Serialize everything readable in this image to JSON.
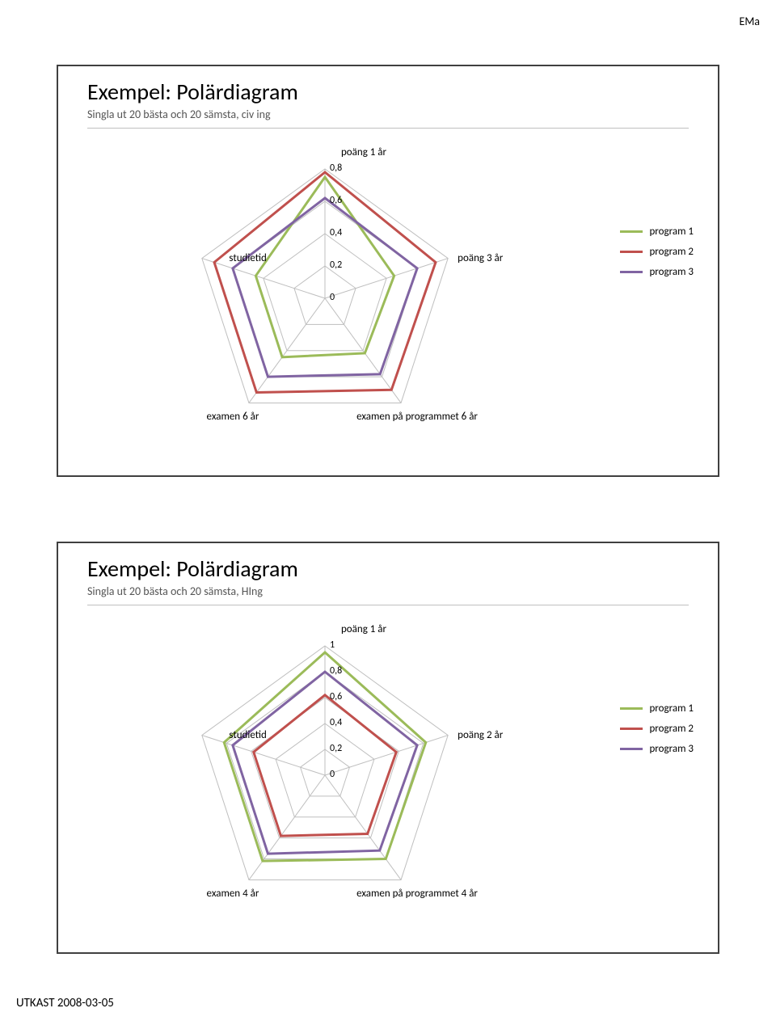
{
  "header": "EMa",
  "footer": "UTKAST 2008-03-05",
  "slide1": {
    "title": "Exempel:  Polärdiagram",
    "subtitle": "Singla ut 20 bästa och 20 sämsta, civ ing",
    "axes": [
      "poäng 1 år",
      "poäng 3 år",
      "examen på programmet 6 år",
      "examen 6 år",
      "studietid"
    ],
    "ticks": [
      "0",
      "0,2",
      "0,4",
      "0,6",
      "0,8"
    ],
    "max": 0.8,
    "series": [
      {
        "name": "program 1",
        "color": "#9bbb59",
        "values": [
          0.75,
          0.45,
          0.42,
          0.45,
          0.45
        ]
      },
      {
        "name": "program 2",
        "color": "#c0504d",
        "values": [
          0.78,
          0.72,
          0.7,
          0.72,
          0.72
        ]
      },
      {
        "name": "program 3",
        "color": "#8064a2",
        "values": [
          0.62,
          0.6,
          0.58,
          0.6,
          0.6
        ]
      }
    ],
    "grid_color": "#bfbfbf",
    "line_width": 3
  },
  "slide2": {
    "title": "Exempel:  Polärdiagram",
    "subtitle": "Singla ut 20 bästa och 20 sämsta, HIng",
    "axes": [
      "poäng 1 år",
      "poäng 2 år",
      "examen på programmet 4 år",
      "examen 4 år",
      "studietid"
    ],
    "ticks": [
      "0",
      "0,2",
      "0,4",
      "0,6",
      "0,8",
      "1"
    ],
    "max": 1.0,
    "series": [
      {
        "name": "program 1",
        "color": "#9bbb59",
        "values": [
          0.95,
          0.82,
          0.8,
          0.82,
          0.82
        ]
      },
      {
        "name": "program 2",
        "color": "#c0504d",
        "values": [
          0.62,
          0.58,
          0.56,
          0.58,
          0.58
        ]
      },
      {
        "name": "program 3",
        "color": "#8064a2",
        "values": [
          0.8,
          0.75,
          0.72,
          0.75,
          0.75
        ]
      }
    ],
    "grid_color": "#bfbfbf",
    "line_width": 3
  }
}
